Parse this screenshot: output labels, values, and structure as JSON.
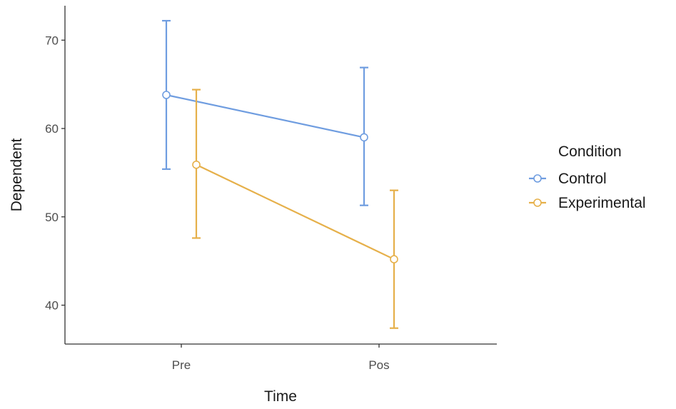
{
  "chart_data": {
    "type": "line",
    "xlabel": "Time",
    "ylabel": "Dependent",
    "categories": [
      "Pre",
      "Pos"
    ],
    "yticks": [
      40,
      50,
      60,
      70
    ],
    "ylim": [
      35.6,
      73.9
    ],
    "grid": false,
    "legend": {
      "title": "Condition",
      "placement": "right"
    },
    "series": [
      {
        "name": "Control",
        "color": "#6f9de0",
        "values": [
          63.8,
          59.0
        ],
        "lower": [
          55.4,
          51.3
        ],
        "upper": [
          72.2,
          66.9
        ]
      },
      {
        "name": "Experimental",
        "color": "#e6b04a",
        "values": [
          55.9,
          45.2
        ],
        "lower": [
          47.6,
          37.4
        ],
        "upper": [
          64.4,
          53.0
        ]
      }
    ]
  }
}
